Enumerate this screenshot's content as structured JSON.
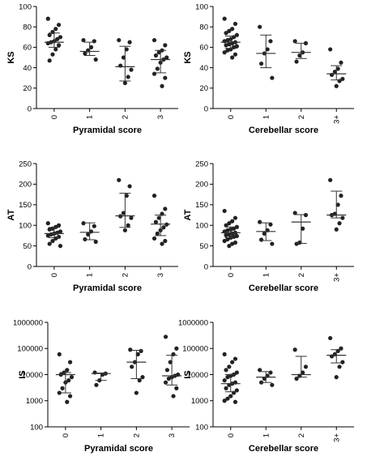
{
  "chart_data": [
    {
      "type": "scatter",
      "ylabel": "KS",
      "xlabel": "Pyramidal score",
      "categories": [
        "0",
        "1",
        "2",
        "3"
      ],
      "yticks": [
        "0",
        "20",
        "40",
        "60",
        "80",
        "100"
      ],
      "ylim": [
        0,
        100
      ],
      "yscale": "linear",
      "groups": [
        {
          "category": "0",
          "points": [
            88,
            82,
            78,
            75,
            72,
            70,
            68,
            66,
            65,
            64,
            62,
            58,
            53,
            47
          ],
          "median": 65,
          "q1": 60,
          "q3": 74
        },
        {
          "category": "1",
          "points": [
            67,
            66,
            60,
            57,
            54,
            48
          ],
          "median": 56,
          "q1": 52,
          "q3": 65
        },
        {
          "category": "2",
          "points": [
            67,
            65,
            58,
            50,
            42,
            38,
            31,
            25
          ],
          "median": 41,
          "q1": 27,
          "q3": 61
        },
        {
          "category": "3",
          "points": [
            67,
            62,
            57,
            55,
            52,
            50,
            48,
            45,
            39,
            34,
            30,
            22
          ],
          "median": 48,
          "q1": 35,
          "q3": 57
        }
      ]
    },
    {
      "type": "scatter",
      "ylabel": "KS",
      "xlabel": "Cerebellar score",
      "categories": [
        "0",
        "1",
        "2",
        "3+"
      ],
      "yticks": [
        "0",
        "20",
        "40",
        "60",
        "80",
        "100"
      ],
      "ylim": [
        0,
        100
      ],
      "yscale": "linear",
      "groups": [
        {
          "category": "0",
          "points": [
            88,
            83,
            78,
            76,
            74,
            72,
            70,
            68,
            67,
            66,
            65,
            64,
            63,
            62,
            61,
            60,
            58,
            57,
            55,
            53,
            50
          ],
          "median": 65,
          "q1": 59,
          "q3": 71
        },
        {
          "category": "1",
          "points": [
            80,
            66,
            58,
            54,
            44,
            30
          ],
          "median": 54,
          "q1": 40,
          "q3": 72
        },
        {
          "category": "2",
          "points": [
            66,
            64,
            55,
            52,
            46
          ],
          "median": 55,
          "q1": 49,
          "q3": 64
        },
        {
          "category": "3+",
          "points": [
            58,
            45,
            39,
            36,
            33,
            29,
            27,
            22
          ],
          "median": 34,
          "q1": 28,
          "q3": 42
        }
      ]
    },
    {
      "type": "scatter",
      "ylabel": "AT",
      "xlabel": "Pyramidal score",
      "categories": [
        "0",
        "1",
        "2",
        "3"
      ],
      "yticks": [
        "0",
        "50",
        "100",
        "150",
        "200",
        "250"
      ],
      "ylim": [
        0,
        250
      ],
      "yscale": "linear",
      "groups": [
        {
          "category": "0",
          "points": [
            105,
            100,
            96,
            92,
            90,
            85,
            82,
            80,
            78,
            75,
            72,
            68,
            62,
            55,
            50
          ],
          "median": 80,
          "q1": 70,
          "q3": 95
        },
        {
          "category": "1",
          "points": [
            105,
            98,
            85,
            78,
            66,
            60
          ],
          "median": 83,
          "q1": 65,
          "q3": 106
        },
        {
          "category": "2",
          "points": [
            210,
            195,
            172,
            130,
            122,
            118,
            100,
            88
          ],
          "median": 123,
          "q1": 95,
          "q3": 178
        },
        {
          "category": "3",
          "points": [
            172,
            140,
            128,
            118,
            108,
            102,
            95,
            88,
            80,
            68,
            62,
            55
          ],
          "median": 103,
          "q1": 75,
          "q3": 125
        }
      ]
    },
    {
      "type": "scatter",
      "ylabel": "AT",
      "xlabel": "Cerebellar score",
      "categories": [
        "0",
        "1",
        "2",
        "3+"
      ],
      "yticks": [
        "0",
        "50",
        "100",
        "150",
        "200",
        "250"
      ],
      "ylim": [
        0,
        250
      ],
      "yscale": "linear",
      "groups": [
        {
          "category": "0",
          "points": [
            135,
            118,
            110,
            105,
            100,
            96,
            92,
            90,
            88,
            85,
            82,
            80,
            78,
            76,
            74,
            72,
            70,
            66,
            62,
            58,
            55,
            50
          ],
          "median": 82,
          "q1": 70,
          "q3": 96
        },
        {
          "category": "1",
          "points": [
            108,
            102,
            88,
            80,
            65,
            55
          ],
          "median": 85,
          "q1": 63,
          "q3": 106
        },
        {
          "category": "2",
          "points": [
            130,
            125,
            92,
            58,
            55
          ],
          "median": 108,
          "q1": 56,
          "q3": 126
        },
        {
          "category": "3+",
          "points": [
            210,
            172,
            150,
            128,
            125,
            118,
            105,
            90
          ],
          "median": 125,
          "q1": 118,
          "q3": 183
        }
      ]
    },
    {
      "type": "scatter",
      "ylabel": "IS",
      "xlabel": "Pyramidal score",
      "categories": [
        "0",
        "1",
        "2",
        "3"
      ],
      "yticks": [
        "100",
        "1000",
        "10000",
        "100000",
        "1000000"
      ],
      "ylim": [
        100,
        1000000
      ],
      "yscale": "log",
      "groups": [
        {
          "category": "0",
          "points": [
            60000,
            30000,
            15000,
            12000,
            10000,
            8000,
            6000,
            5000,
            3000,
            2000,
            1500,
            900
          ],
          "median": 10000,
          "q1": 2000,
          "q3": 12000
        },
        {
          "category": "1",
          "points": [
            12000,
            11000,
            10000,
            6000,
            4000
          ],
          "median": 11000,
          "q1": 6000,
          "q3": 11500
        },
        {
          "category": "2",
          "points": [
            90000,
            80000,
            60000,
            30000,
            20000,
            8000,
            6000,
            2000
          ],
          "median": 30000,
          "q1": 7000,
          "q3": 85000
        },
        {
          "category": "3",
          "points": [
            280000,
            100000,
            60000,
            30000,
            15000,
            10000,
            9000,
            8000,
            7000,
            5000,
            3000,
            1500
          ],
          "median": 9000,
          "q1": 4000,
          "q3": 55000
        }
      ]
    },
    {
      "type": "scatter",
      "ylabel": "IS",
      "xlabel": "Cerebellar score",
      "categories": [
        "0",
        "1",
        "2",
        "3+"
      ],
      "yticks": [
        "100",
        "1000",
        "10000",
        "100000",
        "1000000"
      ],
      "ylim": [
        100,
        1000000
      ],
      "yscale": "log",
      "groups": [
        {
          "category": "0",
          "points": [
            60000,
            40000,
            30000,
            20000,
            15000,
            12000,
            10000,
            9000,
            8000,
            6000,
            5000,
            4500,
            4000,
            3000,
            2500,
            2000,
            1500,
            1200,
            1000,
            900
          ],
          "median": 4500,
          "q1": 2200,
          "q3": 10000
        },
        {
          "category": "1",
          "points": [
            15000,
            12000,
            9000,
            7000,
            5000,
            4000
          ],
          "median": 8000,
          "q1": 5000,
          "q3": 13000
        },
        {
          "category": "2",
          "points": [
            90000,
            20000,
            12000,
            9000,
            7000
          ],
          "median": 10000,
          "q1": 8000,
          "q3": 50000
        },
        {
          "category": "3+",
          "points": [
            250000,
            100000,
            80000,
            60000,
            50000,
            30000,
            20000,
            8000
          ],
          "median": 55000,
          "q1": 28000,
          "q3": 90000
        }
      ]
    }
  ]
}
